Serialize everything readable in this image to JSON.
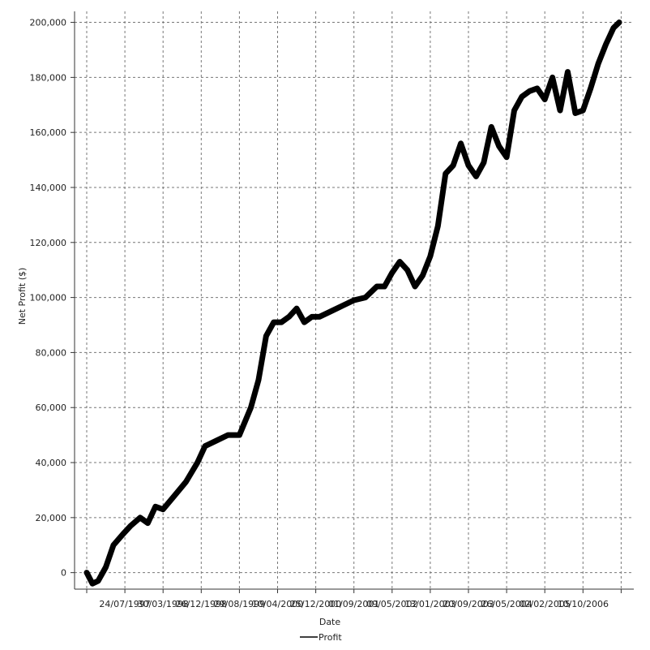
{
  "chart_data": {
    "type": "line",
    "title": "",
    "xlabel": "Date",
    "ylabel": "Net Profit ($)",
    "ylim": [
      -6000,
      204000
    ],
    "y_ticks": [
      0,
      20000,
      40000,
      60000,
      80000,
      100000,
      120000,
      140000,
      160000,
      180000,
      200000
    ],
    "y_tick_labels": [
      "0",
      "20,000",
      "40,000",
      "60,000",
      "80,000",
      "100,000",
      "120,000",
      "140,000",
      "160,000",
      "180,000",
      "200,000"
    ],
    "x_tick_labels": [
      "24/07/1997",
      "30/03/1998",
      "26/12/1998",
      "29/08/1999",
      "10/04/2000",
      "25/12/2000",
      "01/09/2001",
      "09/05/2002",
      "13/01/2003",
      "20/09/2003",
      "26/05/2004",
      "02/02/2005",
      "10/10/2006"
    ],
    "grid": true,
    "legend": {
      "position": "bottom",
      "entries": [
        "Profit"
      ]
    },
    "series": [
      {
        "name": "Profit",
        "color": "#000000",
        "x_index": [
          0,
          0.15,
          0.3,
          0.5,
          0.7,
          0.95,
          1.15,
          1.4,
          1.6,
          1.8,
          2.0,
          2.3,
          2.6,
          2.9,
          3.1,
          3.4,
          3.7,
          4.0,
          4.3,
          4.5,
          4.7,
          4.9,
          5.1,
          5.3,
          5.5,
          5.7,
          5.9,
          6.1,
          6.4,
          6.7,
          7.0,
          7.3,
          7.6,
          7.8,
          8.0,
          8.2,
          8.4,
          8.6,
          8.8,
          9.0,
          9.2,
          9.4,
          9.6,
          9.8,
          10.0,
          10.2,
          10.4,
          10.6,
          10.8,
          11.0,
          11.2,
          11.4,
          11.6,
          11.8,
          12.0,
          12.2,
          12.4,
          12.6,
          12.8,
          13.0,
          13.2,
          13.4,
          13.6,
          13.8,
          13.95
        ],
        "y": [
          0,
          -4000,
          -3000,
          2000,
          10000,
          14000,
          17000,
          20000,
          18000,
          24000,
          23000,
          28000,
          33000,
          40000,
          46000,
          48000,
          50000,
          50000,
          60000,
          70000,
          86000,
          91000,
          91000,
          93000,
          96000,
          91000,
          93000,
          93000,
          95000,
          97000,
          99000,
          100000,
          104000,
          104000,
          109000,
          113000,
          110000,
          104000,
          108000,
          115000,
          126000,
          145000,
          148000,
          156000,
          148000,
          144000,
          149000,
          162000,
          155000,
          151000,
          168000,
          173000,
          175000,
          176000,
          172000,
          180000,
          168000,
          182000,
          167000,
          168000,
          176000,
          185000,
          192000,
          198000,
          200000
        ]
      }
    ]
  }
}
